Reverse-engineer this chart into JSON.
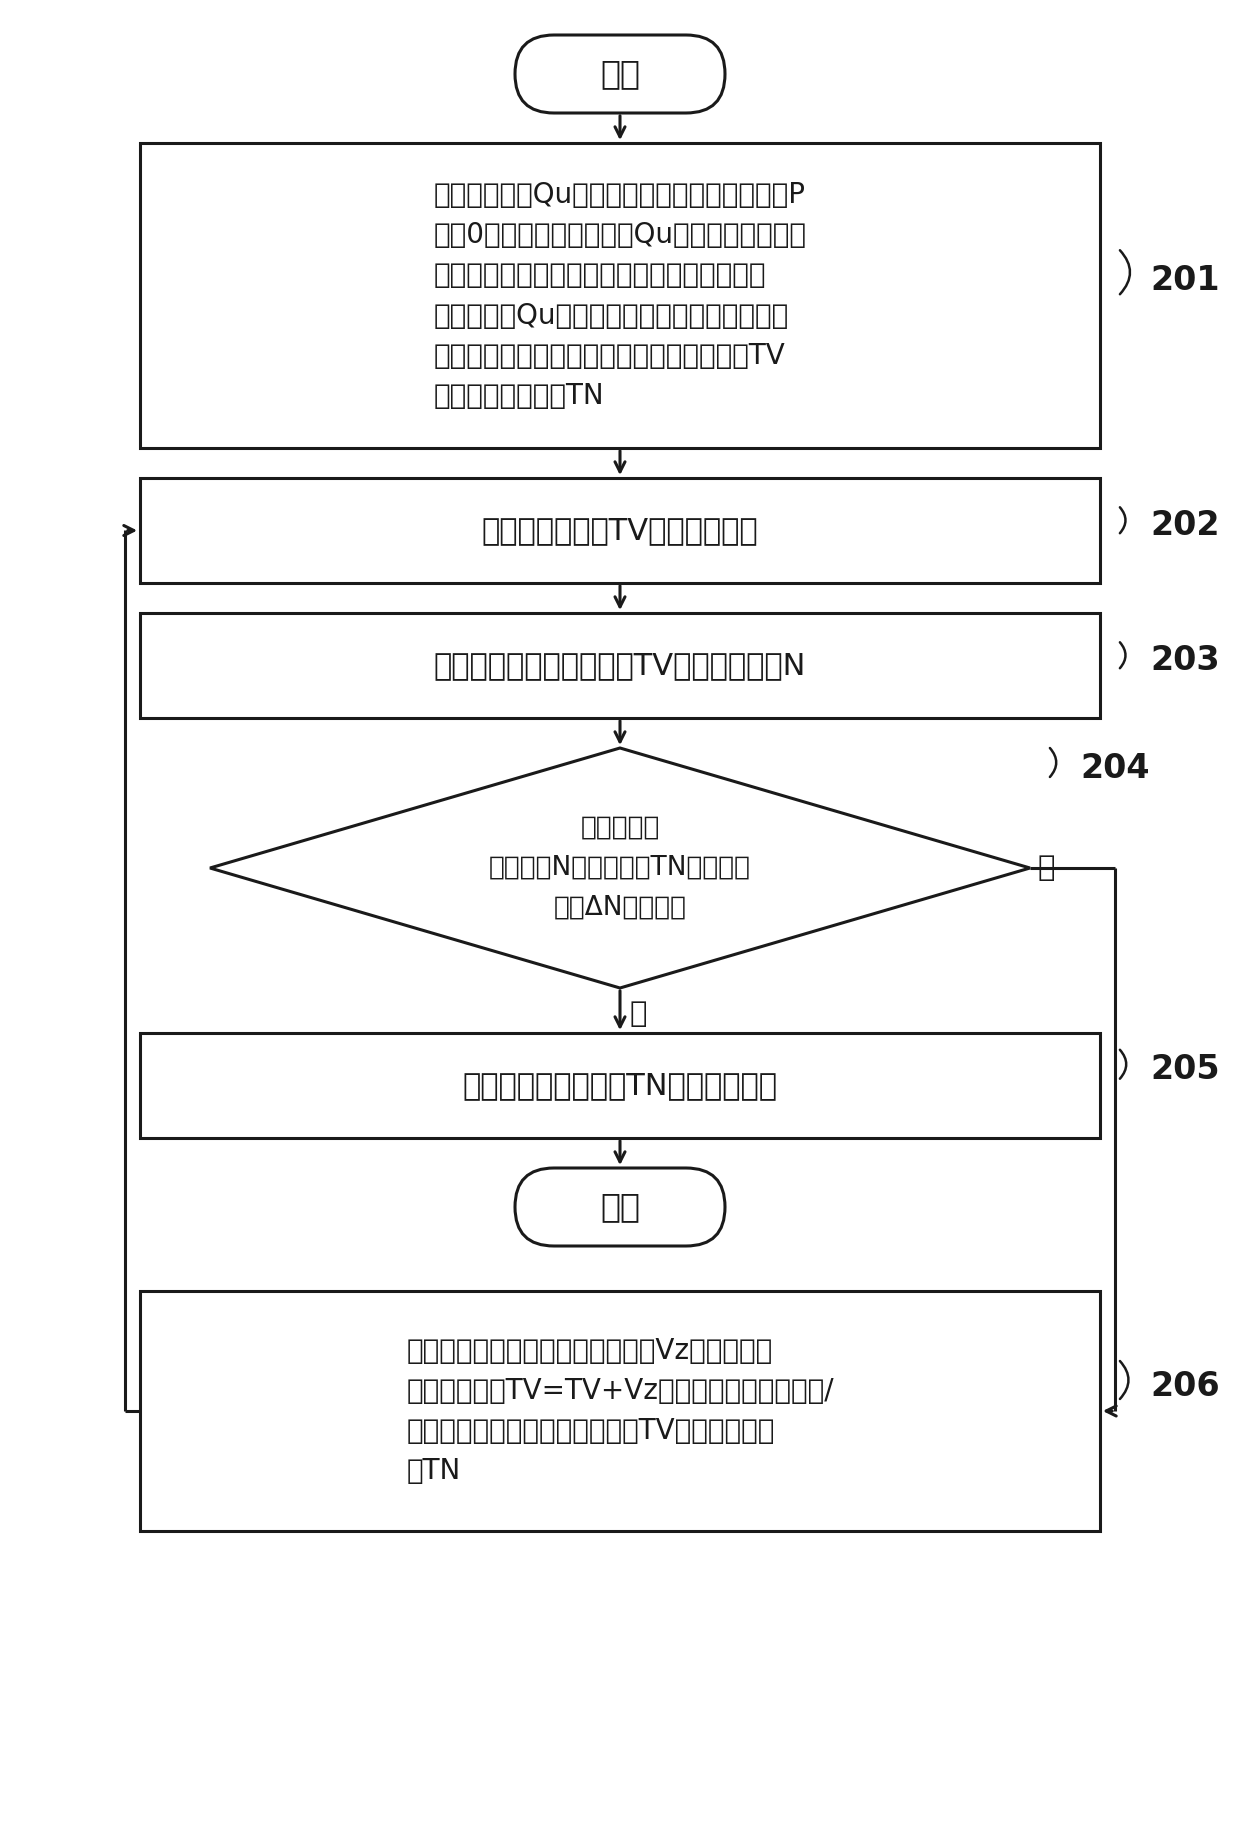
{
  "bg_color": "#ffffff",
  "line_color": "#1a1a1a",
  "text_color": "#1a1a1a",
  "start_text": "开始",
  "end_text": "结束",
  "box1_lines": [
    "根据预定风量Qu，查询查找表，获得静态压力P",
    "等于0时，最接近预定风量Qu的已存储的两个操",
    "作点，通过操作点内已知的电压及转速计算出",
    "与预定风量Qu相关的驱动电压及转速，将所计",
    "算得到的驱动电压及转速作为目标驱动电压TV",
    "及对应的目标转速TN"
  ],
  "box2_text": "以目标驱动电压TV驱动电机运转",
  "box3_text": "检测电机在目标驱动电压TV下的实际转速N",
  "diamond_lines": [
    "判断电机的",
    "实际转速N与目标转速TN之间的转",
    "速差ΔN是否为零"
  ],
  "box5_text": "维持以所述目标转速TN驱动风扇运转",
  "box6_lines": [
    "将所述目标驱动电压增加一增益值Vz以得到新的",
    "目标驱动电压TV=TV+Vz；并通过所述查找表和/",
    "或计算获得与新的目标驱动电压TV对应的目标转",
    "速TN"
  ],
  "label201": "201",
  "label202": "202",
  "label203": "203",
  "label204": "204",
  "label205": "205",
  "label206": "206",
  "yes_text": "是",
  "no_text": "否",
  "fig_w": 12.4,
  "fig_h": 18.35,
  "dpi": 100
}
